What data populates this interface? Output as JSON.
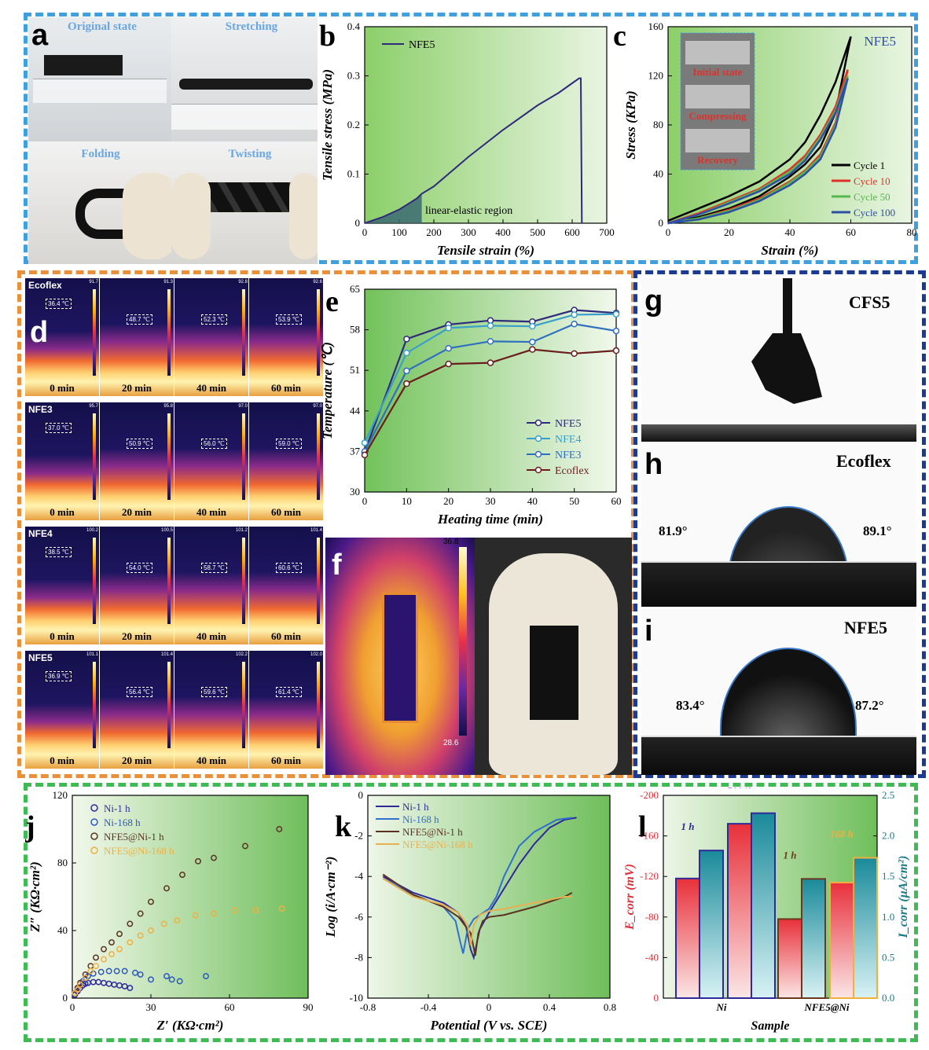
{
  "panels": {
    "a": {
      "label": "a",
      "captions": [
        "Original state",
        "Stretching",
        "Folding",
        "Twisting"
      ]
    },
    "d": {
      "label": "d",
      "rows": [
        {
          "name": "Ecoflex",
          "temps": [
            "36.4 ℃",
            "48.7 ℃",
            "52.3 ℃",
            "53.9 ℃"
          ],
          "scale_max": [
            "91.7",
            "91.3",
            "92.8",
            "92.6"
          ]
        },
        {
          "name": "NFE3",
          "temps": [
            "37.0 ℃",
            "50.9 ℃",
            "56.0 ℃",
            "59.0 ℃"
          ],
          "scale_max": [
            "95.7",
            "95.8",
            "97.0",
            "97.0"
          ]
        },
        {
          "name": "NFE4",
          "temps": [
            "38.5 ℃",
            "54.0 ℃",
            "58.7 ℃",
            "60.6 ℃"
          ],
          "scale_max": [
            "100.2",
            "100.5",
            "101.2",
            "101.4"
          ]
        },
        {
          "name": "NFE5",
          "temps": [
            "36.9 ℃",
            "56.4 ℃",
            "59.6 ℃",
            "61.4 ℃"
          ],
          "scale_max": [
            "101.1",
            "101.4",
            "102.2",
            "102.0"
          ]
        }
      ],
      "times": [
        "0 min",
        "20 min",
        "40 min",
        "60 min"
      ]
    },
    "f": {
      "label": "f",
      "scale_max": "36.8",
      "scale_min": "28.6"
    },
    "g": {
      "label": "g",
      "title": "CFS5"
    },
    "h": {
      "label": "h",
      "title": "Ecoflex",
      "left_angle": "81.9°",
      "right_angle": "89.1°"
    },
    "i": {
      "label": "i",
      "title": "NFE5",
      "left_angle": "83.4°",
      "right_angle": "87.2°"
    }
  },
  "chart_data": [
    {
      "id": "b",
      "label": "b",
      "type": "line",
      "xlabel": "Tensile strain (%)",
      "ylabel": "Tensile stress (MPa)",
      "xlim": [
        0,
        700
      ],
      "ylim": [
        0,
        0.4
      ],
      "xticks": [
        0,
        100,
        200,
        300,
        400,
        500,
        600,
        700
      ],
      "yticks": [
        0.0,
        0.1,
        0.2,
        0.3,
        0.4
      ],
      "annotation": "linear-elastic region",
      "series": [
        {
          "name": "NFE5",
          "color": "#2f2a7a",
          "x": [
            0,
            50,
            100,
            150,
            165,
            200,
            300,
            400,
            500,
            560,
            580,
            600,
            620,
            625,
            628
          ],
          "y": [
            0,
            0.012,
            0.028,
            0.05,
            0.06,
            0.075,
            0.135,
            0.19,
            0.24,
            0.265,
            0.275,
            0.285,
            0.295,
            0.295,
            0
          ]
        }
      ]
    },
    {
      "id": "c",
      "label": "c",
      "type": "line",
      "xlabel": "Strain (%)",
      "ylabel": "Stress (KPa)",
      "title": "NFE5",
      "xlim": [
        0,
        80
      ],
      "ylim": [
        0,
        160
      ],
      "xticks": [
        0,
        20,
        40,
        60,
        80
      ],
      "yticks": [
        0,
        40,
        80,
        120,
        160
      ],
      "inset_labels": [
        "Initial state",
        "Compressing",
        "Recovery"
      ],
      "series": [
        {
          "name": "Cycle 1",
          "color": "#000000",
          "x": [
            0,
            10,
            20,
            30,
            40,
            45,
            50,
            55,
            60
          ],
          "load": [
            2,
            12,
            22,
            34,
            52,
            66,
            88,
            115,
            152
          ],
          "unload": [
            0,
            5,
            12,
            22,
            38,
            48,
            62,
            90,
            152
          ]
        },
        {
          "name": "Cycle 10",
          "color": "#e0302a",
          "x": [
            0,
            10,
            20,
            30,
            40,
            45,
            50,
            55,
            59
          ],
          "load": [
            0,
            8,
            18,
            28,
            44,
            55,
            72,
            95,
            125
          ],
          "unload": [
            0,
            4,
            11,
            20,
            34,
            43,
            56,
            82,
            125
          ]
        },
        {
          "name": "Cycle 50",
          "color": "#55b84a",
          "x": [
            0,
            10,
            20,
            30,
            40,
            45,
            50,
            55,
            59
          ],
          "load": [
            0,
            7,
            17,
            27,
            42,
            53,
            70,
            92,
            120
          ],
          "unload": [
            0,
            4,
            10,
            19,
            33,
            42,
            54,
            80,
            120
          ]
        },
        {
          "name": "Cycle 100",
          "color": "#2e4ea6",
          "x": [
            0,
            10,
            20,
            30,
            40,
            45,
            50,
            55,
            59
          ],
          "load": [
            0,
            7,
            16,
            26,
            40,
            51,
            68,
            90,
            118
          ],
          "unload": [
            0,
            3,
            9,
            18,
            31,
            40,
            52,
            78,
            118
          ]
        }
      ]
    },
    {
      "id": "e",
      "label": "e",
      "type": "line",
      "xlabel": "Heating time (min)",
      "ylabel": "Temperature (℃)",
      "xlim": [
        0,
        60
      ],
      "ylim": [
        30,
        65
      ],
      "xticks": [
        0,
        10,
        20,
        30,
        40,
        50,
        60
      ],
      "yticks": [
        30,
        37,
        44,
        51,
        58,
        65
      ],
      "x": [
        0,
        10,
        20,
        30,
        40,
        50,
        60
      ],
      "series": [
        {
          "name": "NFE5",
          "color": "#2f2a7a",
          "values": [
            36.9,
            56.4,
            58.9,
            59.6,
            59.4,
            61.4,
            60.9
          ]
        },
        {
          "name": "NFE4",
          "color": "#3aa0c9",
          "values": [
            38.5,
            54.0,
            58.3,
            58.7,
            58.6,
            60.6,
            60.7
          ]
        },
        {
          "name": "NFE3",
          "color": "#2f6fc0",
          "values": [
            37.0,
            50.9,
            54.8,
            56.0,
            55.9,
            59.0,
            57.8
          ]
        },
        {
          "name": "Ecoflex",
          "color": "#6b1e1e",
          "values": [
            36.4,
            48.7,
            52.1,
            52.3,
            54.6,
            53.9,
            54.4
          ]
        }
      ]
    },
    {
      "id": "j",
      "label": "j",
      "type": "scatter",
      "xlabel": "Z′ (KΩ·cm²)",
      "ylabel": "Z″ (KΩ·cm²)",
      "xlim": [
        0,
        90
      ],
      "ylim": [
        0,
        120
      ],
      "xticks": [
        0,
        30,
        60,
        90
      ],
      "yticks": [
        0,
        40,
        80,
        120
      ],
      "series": [
        {
          "name": "Ni-1 h",
          "color": "#2f2a9a",
          "x": [
            1,
            2,
            3,
            4,
            5,
            6,
            8,
            10,
            12,
            14,
            16,
            18,
            20,
            22
          ],
          "y": [
            2,
            4,
            6,
            7.5,
            8.5,
            9,
            9.5,
            9.5,
            9,
            8.5,
            8,
            7.5,
            7,
            6
          ]
        },
        {
          "name": "Ni-168 h",
          "color": "#2e58c0",
          "x": [
            1,
            2,
            3,
            4,
            5,
            6,
            8,
            11,
            14,
            17,
            20,
            24,
            26,
            30,
            36,
            38,
            41,
            51
          ],
          "y": [
            3,
            6,
            8,
            10,
            11.5,
            13,
            14.5,
            15.5,
            16,
            16,
            16,
            15,
            14,
            11,
            13,
            11,
            10,
            13
          ]
        },
        {
          "name": "NFE5@Ni-1 h",
          "color": "#5a3220",
          "x": [
            1,
            2,
            3,
            5,
            7,
            9,
            12,
            15,
            18,
            22,
            26,
            30,
            36,
            42,
            48,
            54,
            66,
            79
          ],
          "y": [
            3,
            6,
            9,
            14,
            19,
            24,
            29,
            33,
            38,
            44,
            50,
            57,
            65,
            73,
            81,
            83,
            90,
            100
          ]
        },
        {
          "name": "NFE5@Ni-168 h",
          "color": "#f0b040",
          "x": [
            1,
            2,
            3,
            5,
            7,
            9,
            12,
            15,
            18,
            22,
            26,
            30,
            35,
            40,
            47,
            54,
            62,
            70,
            80
          ],
          "y": [
            3,
            5,
            8,
            12,
            16,
            19,
            23,
            26,
            29,
            33,
            37,
            40,
            44,
            46,
            49,
            50,
            52,
            52,
            53
          ]
        }
      ]
    },
    {
      "id": "k",
      "label": "k",
      "type": "line",
      "xlabel": "Potential (V vs. SCE)",
      "ylabel": "Log (i/A·cm⁻²)",
      "xlim": [
        -0.8,
        0.8
      ],
      "ylim": [
        -10,
        0
      ],
      "xticks": [
        -0.8,
        -0.4,
        0.0,
        0.4,
        0.8
      ],
      "yticks": [
        0,
        -2,
        -4,
        -6,
        -8,
        -10
      ],
      "series": [
        {
          "name": "Ni-1 h",
          "color": "#2f2a9a",
          "x": [
            -0.7,
            -0.5,
            -0.3,
            -0.2,
            -0.15,
            -0.12,
            -0.1,
            -0.06,
            0.0,
            0.1,
            0.2,
            0.3,
            0.4,
            0.5,
            0.58
          ],
          "y": [
            -4.0,
            -4.8,
            -5.3,
            -5.8,
            -6.5,
            -7.6,
            -8.0,
            -6.6,
            -5.8,
            -4.6,
            -3.4,
            -2.4,
            -1.6,
            -1.2,
            -1.1
          ]
        },
        {
          "name": "Ni-168 h",
          "color": "#2e6fd0",
          "x": [
            -0.7,
            -0.5,
            -0.3,
            -0.22,
            -0.19,
            -0.17,
            -0.14,
            -0.1,
            0.0,
            0.05,
            0.1,
            0.2,
            0.3,
            0.45,
            0.55
          ],
          "y": [
            -4.1,
            -4.9,
            -5.5,
            -6.2,
            -7.2,
            -7.8,
            -6.6,
            -6.1,
            -5.6,
            -5.0,
            -4.0,
            -2.5,
            -1.8,
            -1.2,
            -1.1
          ]
        },
        {
          "name": "NFE5@Ni-1 h",
          "color": "#5a3220",
          "x": [
            -0.7,
            -0.5,
            -0.3,
            -0.2,
            -0.12,
            -0.09,
            -0.07,
            -0.04,
            0.0,
            0.1,
            0.3,
            0.5,
            0.55
          ],
          "y": [
            -3.9,
            -4.9,
            -5.5,
            -6.0,
            -6.8,
            -7.9,
            -6.8,
            -6.2,
            -6.0,
            -5.9,
            -5.5,
            -5.0,
            -4.8
          ]
        },
        {
          "name": "NFE5@Ni-168 h",
          "color": "#e8b050",
          "x": [
            -0.7,
            -0.5,
            -0.3,
            -0.2,
            -0.14,
            -0.12,
            -0.1,
            -0.06,
            0.0,
            0.1,
            0.3,
            0.5,
            0.55
          ],
          "y": [
            -4.1,
            -5.0,
            -5.4,
            -5.8,
            -6.4,
            -7.4,
            -6.4,
            -5.9,
            -5.7,
            -5.6,
            -5.3,
            -5.0,
            -5.0
          ]
        }
      ]
    },
    {
      "id": "l",
      "label": "l",
      "type": "bar",
      "xlabel": "Sample",
      "ylabel": "E_corr (mV)",
      "y2label": "I_corr (μA/cm²)",
      "categories": [
        "Ni",
        "NFE5@Ni"
      ],
      "ylim": [
        0,
        -200
      ],
      "yticks": [
        0,
        -40,
        -80,
        -120,
        -160,
        -200
      ],
      "y2lim": [
        0,
        2.5
      ],
      "y2ticks": [
        0.0,
        0.5,
        1.0,
        1.5,
        2.0,
        2.5
      ],
      "groups": [
        {
          "category": "Ni",
          "tag": "1 h",
          "ecorr": -118,
          "icorr": 1.82
        },
        {
          "category": "Ni",
          "tag": "168 h",
          "ecorr": -172,
          "icorr": 2.28
        },
        {
          "category": "NFE5@Ni",
          "tag": "1 h",
          "ecorr": -78,
          "icorr": 1.47
        },
        {
          "category": "NFE5@Ni",
          "tag": "168 h",
          "ecorr": -114,
          "icorr": 1.73
        }
      ]
    }
  ]
}
